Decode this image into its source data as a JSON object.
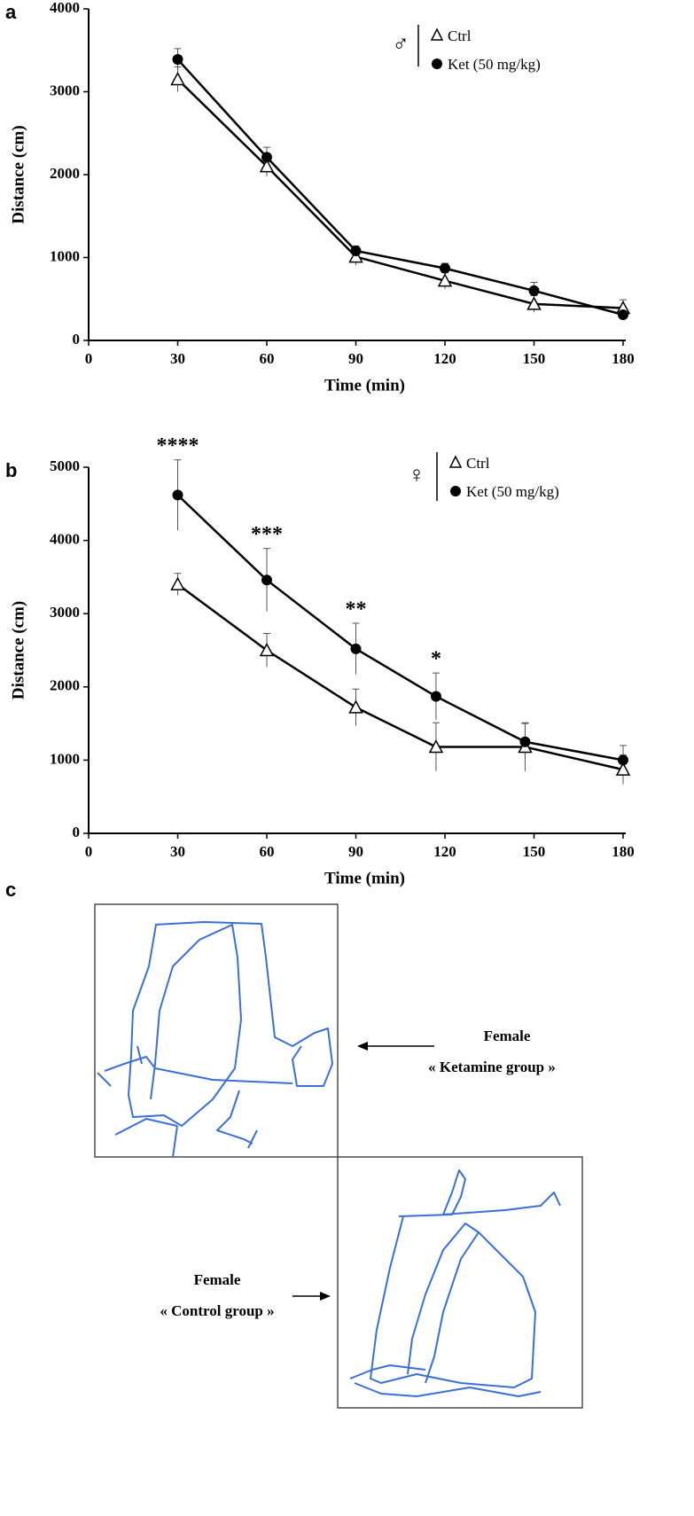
{
  "chart_data": [
    {
      "type": "line",
      "panel_label": "a",
      "legend_title": "♂",
      "x_label": "Time (min)",
      "y_label": "Distance (cm)",
      "x": [
        30,
        60,
        90,
        120,
        150,
        180
      ],
      "xlim": [
        0,
        180
      ],
      "xticks": [
        0,
        30,
        60,
        90,
        120,
        150,
        180
      ],
      "ylim": [
        0,
        4000
      ],
      "yticks": [
        0,
        1000,
        2000,
        3000,
        4000
      ],
      "series": [
        {
          "name": "Ctrl",
          "color": "#000000",
          "marker": "triangle-open",
          "values": [
            3150,
            2100,
            1010,
            720,
            440,
            390
          ],
          "errors": [
            150,
            120,
            100,
            100,
            100,
            100
          ]
        },
        {
          "name": "Ket (50 mg/kg)",
          "color": "#000000",
          "marker": "circle",
          "values": [
            3390,
            2210,
            1080,
            870,
            600,
            310
          ],
          "errors": [
            130,
            120,
            60,
            60,
            100,
            40
          ]
        }
      ],
      "annotations": []
    },
    {
      "type": "line",
      "panel_label": "b",
      "legend_title": "♀",
      "x_label": "Time (min)",
      "y_label": "Distance (cm)",
      "x": [
        30,
        60,
        90,
        117,
        147,
        180
      ],
      "xlim": [
        0,
        180
      ],
      "xticks": [
        0,
        30,
        60,
        90,
        120,
        150,
        180
      ],
      "ylim": [
        0,
        5000
      ],
      "yticks": [
        0,
        1000,
        2000,
        3000,
        4000,
        5000
      ],
      "series": [
        {
          "name": "Ctrl",
          "color": "#000000",
          "marker": "triangle-open",
          "values": [
            3400,
            2500,
            1720,
            1180,
            1180,
            870
          ],
          "errors": [
            150,
            230,
            250,
            330,
            330,
            200
          ]
        },
        {
          "name": "Ket (50 mg/kg)",
          "color": "#000000",
          "marker": "circle",
          "values": [
            4620,
            3460,
            2520,
            1870,
            1250,
            1000
          ],
          "errors": [
            480,
            430,
            350,
            320,
            250,
            200
          ]
        }
      ],
      "annotations": [
        {
          "text": "****",
          "x": 30
        },
        {
          "text": "***",
          "x": 60
        },
        {
          "text": "**",
          "x": 90
        },
        {
          "text": "*",
          "x": 117
        }
      ]
    }
  ],
  "panel_c": {
    "label": "c",
    "top_caption": {
      "line1": "Female",
      "line2": "« Ketamine group »"
    },
    "bottom_caption": {
      "line1": "Female",
      "line2": "« Control group »"
    }
  }
}
